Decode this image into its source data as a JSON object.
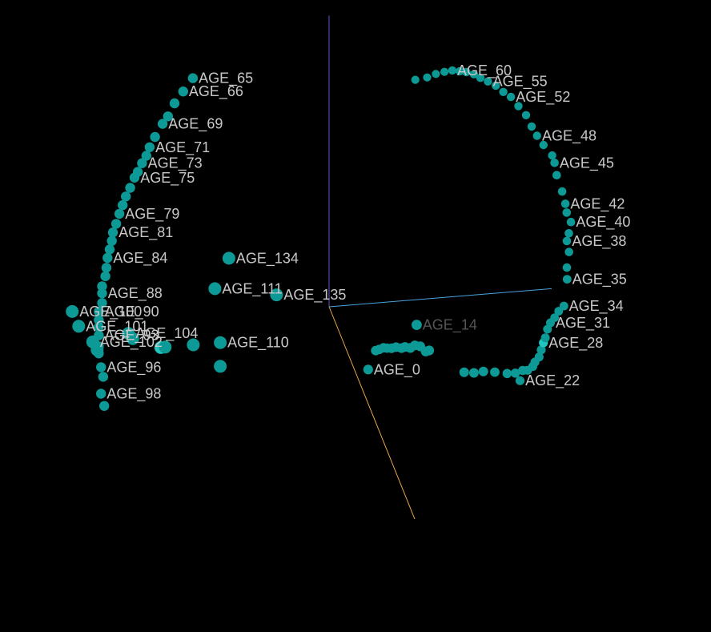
{
  "chart_data": {
    "type": "scatter",
    "projection": "3d",
    "title": "",
    "axes": {
      "x_color": "#4aa3df",
      "y_color": "#6f52c8",
      "z_color": "#e8a64a"
    },
    "colors": {
      "point": "#0d9a96",
      "point_highlight": "#1fc6c0",
      "label": "#c8c8c8",
      "label_dim": "#555555",
      "background": "#000000"
    },
    "points": [
      {
        "label": "AGE_0",
        "x": 0.33,
        "y": -0.41,
        "z": 0.04
      },
      {
        "label": "AGE_1",
        "x": 0.36,
        "y": -0.2,
        "z": 0.09
      },
      {
        "label": "AGE_2",
        "x": 0.4,
        "y": -0.21,
        "z": 0.08
      },
      {
        "label": "AGE_3",
        "x": 0.44,
        "y": -0.2,
        "z": 0.08
      },
      {
        "label": "AGE_4",
        "x": 0.48,
        "y": -0.22,
        "z": 0.07
      },
      {
        "label": "AGE_5",
        "x": 0.53,
        "y": -0.24,
        "z": 0.06
      },
      {
        "label": "AGE_6",
        "x": 0.58,
        "y": -0.25,
        "z": 0.05
      },
      {
        "label": "AGE_7",
        "x": 0.63,
        "y": -0.26,
        "z": 0.05
      },
      {
        "label": "AGE_8",
        "x": 0.67,
        "y": -0.27,
        "z": 0.04
      },
      {
        "label": "AGE_9",
        "x": 0.72,
        "y": -0.28,
        "z": 0.04
      },
      {
        "label": "AGE_10",
        "x": 0.77,
        "y": -0.28,
        "z": 0.03
      },
      {
        "label": "AGE_11",
        "x": 0.82,
        "y": -0.29,
        "z": 0.03
      },
      {
        "label": "AGE_12",
        "x": 0.87,
        "y": -0.33,
        "z": 0.03
      },
      {
        "label": "AGE_13",
        "x": 0.91,
        "y": -0.34,
        "z": 0.02
      },
      {
        "label": "AGE_14",
        "x": 0.85,
        "y": -0.26,
        "z": -0.05
      },
      {
        "label": "AGE_15",
        "x": 1.21,
        "y": -0.47,
        "z": 0.05
      },
      {
        "label": "AGE_16",
        "x": 1.3,
        "y": -0.48,
        "z": 0.05
      },
      {
        "label": "AGE_17",
        "x": 1.38,
        "y": -0.46,
        "z": 0.06
      },
      {
        "label": "AGE_18",
        "x": 1.47,
        "y": -0.44,
        "z": 0.08
      },
      {
        "label": "AGE_19",
        "x": 1.56,
        "y": -0.41,
        "z": 0.11
      },
      {
        "label": "AGE_20",
        "x": 1.62,
        "y": -0.38,
        "z": 0.13
      },
      {
        "label": "AGE_21",
        "x": 1.68,
        "y": -0.35,
        "z": 0.14
      },
      {
        "label": "AGE_22",
        "x": 1.64,
        "y": -0.39,
        "z": 0.16
      },
      {
        "label": "AGE_23",
        "x": 1.71,
        "y": -0.32,
        "z": 0.16
      },
      {
        "label": "AGE_24",
        "x": 1.75,
        "y": -0.28,
        "z": 0.17
      },
      {
        "label": "AGE_25",
        "x": 1.77,
        "y": -0.25,
        "z": 0.17
      },
      {
        "label": "AGE_26",
        "x": 1.8,
        "y": -0.2,
        "z": 0.18
      },
      {
        "label": "AGE_27",
        "x": 1.82,
        "y": -0.15,
        "z": 0.18
      },
      {
        "label": "AGE_28",
        "x": 1.84,
        "y": -0.1,
        "z": 0.18
      },
      {
        "label": "AGE_29",
        "x": 1.85,
        "y": -0.05,
        "z": 0.19
      },
      {
        "label": "AGE_30",
        "x": 1.87,
        "y": 0.01,
        "z": 0.19
      },
      {
        "label": "AGE_31",
        "x": 1.89,
        "y": 0.07,
        "z": 0.2
      },
      {
        "label": "AGE_32",
        "x": 1.92,
        "y": 0.12,
        "z": 0.21
      },
      {
        "label": "AGE_33",
        "x": 1.95,
        "y": 0.18,
        "z": 0.22
      },
      {
        "label": "AGE_34",
        "x": 1.99,
        "y": 0.23,
        "z": 0.23
      },
      {
        "label": "AGE_35",
        "x": 2.02,
        "y": 0.42,
        "z": 0.23
      },
      {
        "label": "AGE_36",
        "x": 2.01,
        "y": 0.52,
        "z": 0.24
      },
      {
        "label": "AGE_37",
        "x": 2.03,
        "y": 0.63,
        "z": 0.24
      },
      {
        "label": "AGE_38",
        "x": 2.01,
        "y": 0.71,
        "z": 0.24
      },
      {
        "label": "AGE_39",
        "x": 2.02,
        "y": 0.78,
        "z": 0.25
      },
      {
        "label": "AGE_40",
        "x": 2.04,
        "y": 0.86,
        "z": 0.25
      },
      {
        "label": "AGE_41",
        "x": 2.0,
        "y": 0.93,
        "z": 0.25
      },
      {
        "label": "AGE_42",
        "x": 1.98,
        "y": 1.01,
        "z": 0.26
      },
      {
        "label": "AGE_43",
        "x": 1.95,
        "y": 1.1,
        "z": 0.26
      },
      {
        "label": "AGE_44",
        "x": 1.9,
        "y": 1.22,
        "z": 0.26
      },
      {
        "label": "AGE_45",
        "x": 1.88,
        "y": 1.31,
        "z": 0.26
      },
      {
        "label": "AGE_46",
        "x": 1.85,
        "y": 1.38,
        "z": 0.27
      },
      {
        "label": "AGE_47",
        "x": 1.77,
        "y": 1.46,
        "z": 0.27
      },
      {
        "label": "AGE_48",
        "x": 1.71,
        "y": 1.53,
        "z": 0.27
      },
      {
        "label": "AGE_49",
        "x": 1.66,
        "y": 1.6,
        "z": 0.27
      },
      {
        "label": "AGE_50",
        "x": 1.6,
        "y": 1.7,
        "z": 0.28
      },
      {
        "label": "AGE_51",
        "x": 1.53,
        "y": 1.77,
        "z": 0.28
      },
      {
        "label": "AGE_52",
        "x": 1.46,
        "y": 1.84,
        "z": 0.28
      },
      {
        "label": "AGE_53",
        "x": 1.39,
        "y": 1.88,
        "z": 0.28
      },
      {
        "label": "AGE_54",
        "x": 1.32,
        "y": 1.93,
        "z": 0.28
      },
      {
        "label": "AGE_55",
        "x": 1.24,
        "y": 1.98,
        "z": 0.29
      },
      {
        "label": "AGE_56",
        "x": 1.17,
        "y": 2.01,
        "z": 0.29
      },
      {
        "label": "AGE_57",
        "x": 1.11,
        "y": 2.04,
        "z": 0.29
      },
      {
        "label": "AGE_58",
        "x": 1.04,
        "y": 2.06,
        "z": 0.29
      },
      {
        "label": "AGE_59",
        "x": 0.98,
        "y": 2.07,
        "z": 0.29
      },
      {
        "label": "AGE_60",
        "x": 0.91,
        "y": 2.08,
        "z": 0.29
      },
      {
        "label": "AGE_61",
        "x": 0.83,
        "y": 2.09,
        "z": 0.3
      },
      {
        "label": "AGE_62",
        "x": 0.75,
        "y": 2.08,
        "z": 0.3
      },
      {
        "label": "AGE_63",
        "x": 0.67,
        "y": 2.06,
        "z": 0.3
      },
      {
        "label": "AGE_64",
        "x": 0.56,
        "y": 2.05,
        "z": 0.3
      },
      {
        "label": "AGE_65",
        "x": -1.26,
        "y": 1.72,
        "z": 0.0
      },
      {
        "label": "AGE_66",
        "x": -1.35,
        "y": 1.63,
        "z": 0.0
      },
      {
        "label": "AGE_67",
        "x": -1.43,
        "y": 1.55,
        "z": 0.0
      },
      {
        "label": "AGE_68",
        "x": -1.49,
        "y": 1.46,
        "z": 0.0
      },
      {
        "label": "AGE_69",
        "x": -1.54,
        "y": 1.41,
        "z": 0.0
      },
      {
        "label": "AGE_70",
        "x": -1.61,
        "y": 1.32,
        "z": 0.0
      },
      {
        "label": "AGE_71",
        "x": -1.66,
        "y": 1.25,
        "z": 0.0
      },
      {
        "label": "AGE_72",
        "x": -1.69,
        "y": 1.19,
        "z": 0.0
      },
      {
        "label": "AGE_73",
        "x": -1.73,
        "y": 1.14,
        "z": 0.0
      },
      {
        "label": "AGE_74",
        "x": -1.77,
        "y": 1.08,
        "z": 0.0
      },
      {
        "label": "AGE_75",
        "x": -1.8,
        "y": 1.04,
        "z": 0.0
      },
      {
        "label": "AGE_76",
        "x": -1.84,
        "y": 0.97,
        "z": 0.0
      },
      {
        "label": "AGE_77",
        "x": -1.88,
        "y": 0.91,
        "z": 0.0
      },
      {
        "label": "AGE_78",
        "x": -1.91,
        "y": 0.85,
        "z": 0.0
      },
      {
        "label": "AGE_79",
        "x": -1.94,
        "y": 0.79,
        "z": 0.0
      },
      {
        "label": "AGE_80",
        "x": -1.97,
        "y": 0.72,
        "z": 0.0
      },
      {
        "label": "AGE_81",
        "x": -2.0,
        "y": 0.66,
        "z": 0.0
      },
      {
        "label": "AGE_82",
        "x": -2.01,
        "y": 0.6,
        "z": 0.0
      },
      {
        "label": "AGE_83",
        "x": -2.03,
        "y": 0.54,
        "z": 0.0
      },
      {
        "label": "AGE_84",
        "x": -2.05,
        "y": 0.48,
        "z": 0.0
      },
      {
        "label": "AGE_85",
        "x": -2.06,
        "y": 0.41,
        "z": 0.0
      },
      {
        "label": "AGE_86",
        "x": -2.07,
        "y": 0.35,
        "z": 0.0
      },
      {
        "label": "AGE_87",
        "x": -2.1,
        "y": 0.28,
        "z": 0.0
      },
      {
        "label": "AGE_88",
        "x": -2.1,
        "y": 0.23,
        "z": 0.0
      },
      {
        "label": "AGE_89",
        "x": -2.1,
        "y": 0.16,
        "z": 0.0
      },
      {
        "label": "AGE_90",
        "x": -2.13,
        "y": 0.1,
        "z": 0.0
      },
      {
        "label": "AGE_91",
        "x": -2.13,
        "y": 0.04,
        "z": 0.0
      },
      {
        "label": "AGE_92",
        "x": -2.13,
        "y": -0.01,
        "z": 0.0
      },
      {
        "label": "AGE_93",
        "x": -2.13,
        "y": -0.07,
        "z": 0.0
      },
      {
        "label": "AGE_94",
        "x": -2.13,
        "y": -0.15,
        "z": 0.0
      },
      {
        "label": "AGE_95",
        "x": -2.13,
        "y": -0.2,
        "z": 0.0
      },
      {
        "label": "AGE_96",
        "x": -2.11,
        "y": -0.3,
        "z": 0.0
      },
      {
        "label": "AGE_97",
        "x": -2.09,
        "y": -0.37,
        "z": 0.0
      },
      {
        "label": "AGE_98",
        "x": -2.11,
        "y": -0.49,
        "z": 0.0
      },
      {
        "label": "AGE_99",
        "x": -2.08,
        "y": -0.58,
        "z": 0.0
      },
      {
        "label": "AGE_100",
        "x": -1.98,
        "y": -0.67,
        "z": -0.5
      },
      {
        "label": "AGE_101",
        "x": -1.92,
        "y": -0.78,
        "z": -0.5
      },
      {
        "label": "AGE_102",
        "x": -1.79,
        "y": -0.9,
        "z": -0.5
      },
      {
        "label": "AGE_103",
        "x": -1.75,
        "y": -0.96,
        "z": -0.5
      },
      {
        "label": "AGE_104",
        "x": -1.46,
        "y": -0.86,
        "z": -0.5
      },
      {
        "label": "AGE_105",
        "x": -1.42,
        "y": -0.9,
        "z": -0.5
      },
      {
        "label": "AGE_106",
        "x": -1.16,
        "y": -0.98,
        "z": -0.5
      },
      {
        "label": "AGE_107",
        "x": -1.12,
        "y": -0.98,
        "z": -0.5
      },
      {
        "label": "AGE_108",
        "x": -0.86,
        "y": -0.98,
        "z": -0.5
      },
      {
        "label": "AGE_109",
        "x": -0.61,
        "y": -1.15,
        "z": -0.5
      },
      {
        "label": "AGE_110",
        "x": -0.61,
        "y": -0.98,
        "z": -0.5
      },
      {
        "label": "AGE_111",
        "x": -0.66,
        "y": -0.59,
        "z": -0.5
      },
      {
        "label": "AGE_134",
        "x": -0.53,
        "y": -0.38,
        "z": -0.5
      },
      {
        "label": "AGE_135",
        "x": -0.09,
        "y": -0.67,
        "z": -0.5
      }
    ],
    "shown_labels": [
      "AGE_0",
      "AGE_14",
      "AGE_22",
      "AGE_28",
      "AGE_31",
      "AGE_34",
      "AGE_35",
      "AGE_38",
      "AGE_40",
      "AGE_42",
      "AGE_45",
      "AGE_48",
      "AGE_52",
      "AGE_55",
      "AGE_60",
      "AGE_65",
      "AGE_66",
      "AGE_69",
      "AGE_71",
      "AGE_73",
      "AGE_75",
      "AGE_79",
      "AGE_81",
      "AGE_84",
      "AGE_88",
      "AGE_90",
      "AGE_93",
      "AGE_96",
      "AGE_98",
      "AGE_100",
      "AGE_101",
      "AGE_102",
      "AGE_104",
      "AGE_110",
      "AGE_111",
      "AGE_134",
      "AGE_135"
    ],
    "dim_labels": [
      "AGE_14"
    ],
    "highlight_points": [
      "AGE_28",
      "AGE_106"
    ],
    "grid": false,
    "legend": "none"
  }
}
